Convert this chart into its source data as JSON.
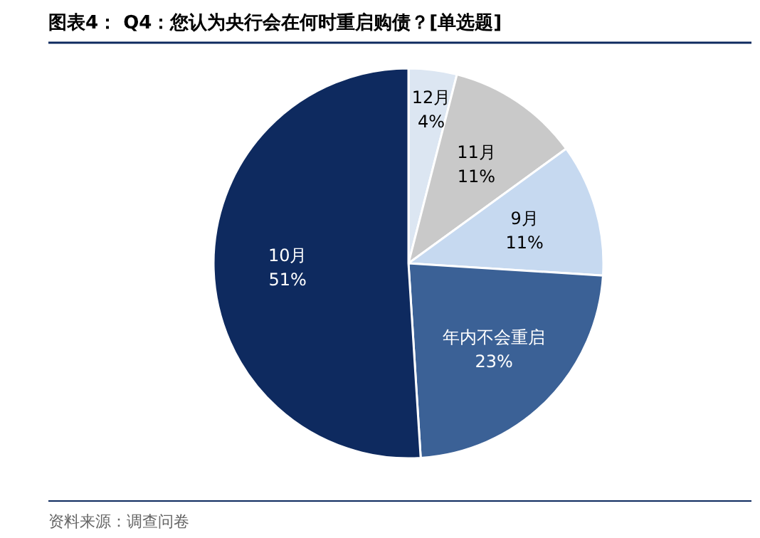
{
  "chart_data": {
    "type": "pie",
    "title": "图表4： Q4：您认为央行会在何时重启购债？[单选题]",
    "categories": [
      "12月",
      "11月",
      "9月",
      "年内不会重启",
      "10月"
    ],
    "values": [
      4,
      11,
      11,
      23,
      51
    ],
    "value_labels": [
      "4%",
      "11%",
      "11%",
      "23%",
      "51%"
    ],
    "colors": [
      "#dce6f2",
      "#c9c9c9",
      "#c6d9f0",
      "#3b6196",
      "#0e2a5f"
    ],
    "annotations": [
      "资料来源：调查问卷"
    ],
    "legend": false
  }
}
